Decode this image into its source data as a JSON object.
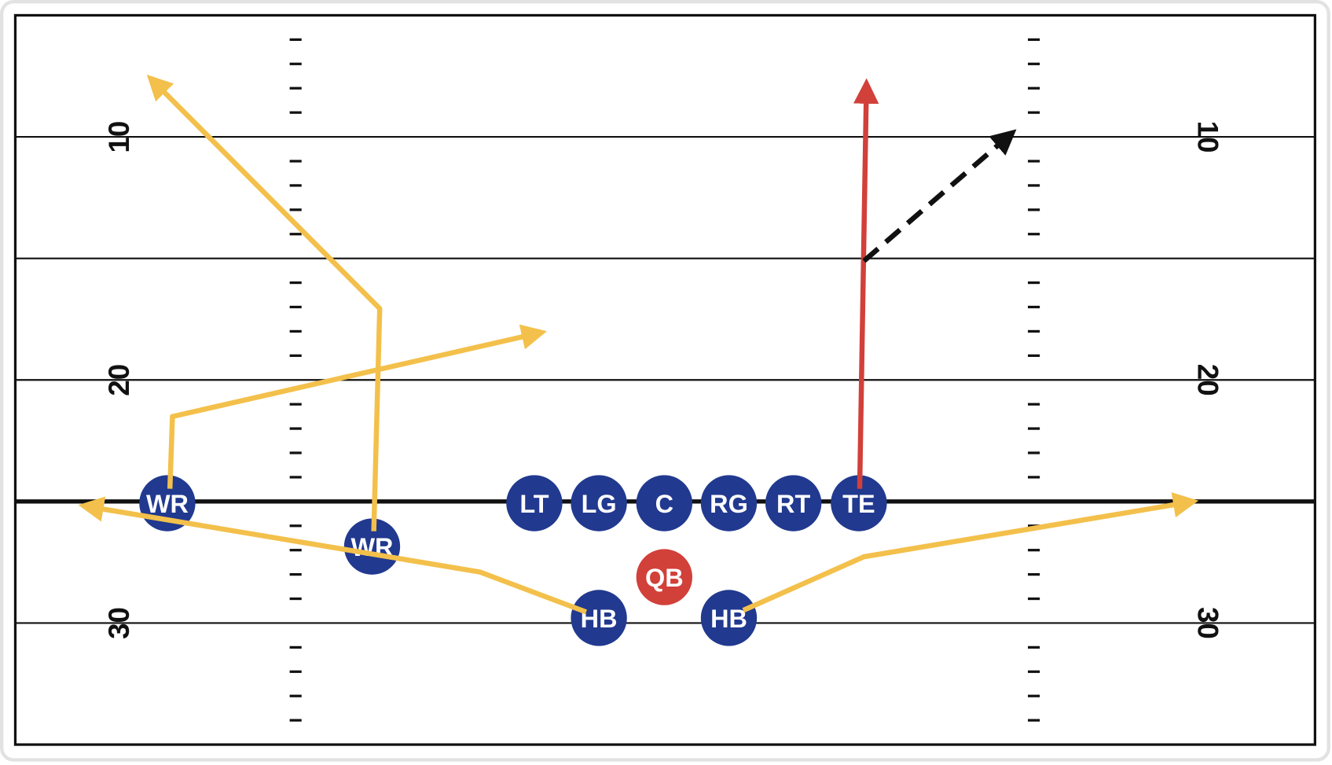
{
  "yard_numbers_left": [
    10,
    20,
    30
  ],
  "yard_numbers_right": [
    10,
    20,
    30
  ],
  "players": [
    {
      "label": "WR"
    },
    {
      "label": "WR"
    },
    {
      "label": "LT"
    },
    {
      "label": "LG"
    },
    {
      "label": "C"
    },
    {
      "label": "RG"
    },
    {
      "label": "RT"
    },
    {
      "label": "TE"
    },
    {
      "label": "QB"
    },
    {
      "label": "HB"
    },
    {
      "label": "HB"
    }
  ]
}
